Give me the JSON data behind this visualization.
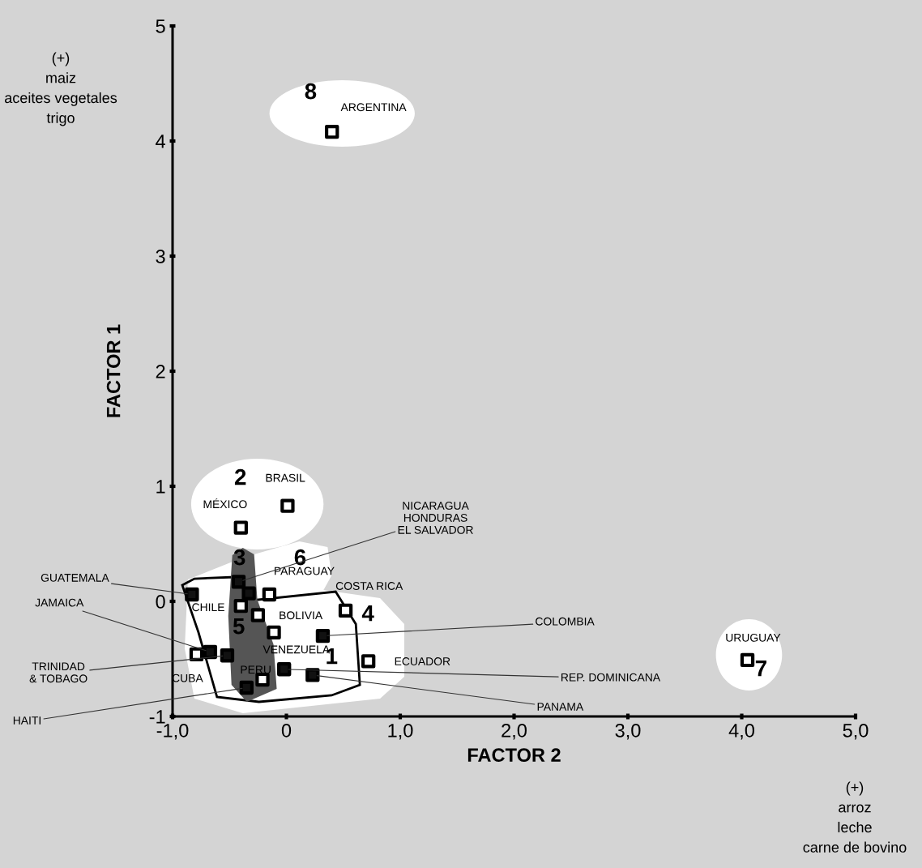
{
  "chart_data": {
    "type": "scatter",
    "xlabel": "FACTOR 2",
    "ylabel": "FACTOR 1",
    "xlim": [
      -1,
      5
    ],
    "ylim": [
      -1,
      5
    ],
    "xticks": [
      {
        "value": -1,
        "label": "-1,0"
      },
      0,
      {
        "value": 1,
        "label": "1,0"
      },
      {
        "value": 2,
        "label": "2,0"
      },
      {
        "value": 3,
        "label": "3,0"
      },
      {
        "value": 4,
        "label": "4,0"
      },
      {
        "value": 5,
        "label": "5,0"
      }
    ],
    "yticks": [
      -1,
      0,
      1,
      2,
      3,
      4,
      5
    ],
    "marker": "square",
    "grid": false,
    "legend": false,
    "x": [
      0.4,
      0.01,
      -0.4,
      4.05,
      0.52,
      0.72,
      -0.15,
      -0.25,
      -0.83,
      -0.4,
      -0.67,
      -0.52,
      -0.79,
      -0.35,
      -0.11,
      -0.21,
      0.32,
      -0.02,
      0.23,
      -0.42,
      -0.33
    ],
    "values": [
      4.08,
      0.83,
      0.64,
      -0.51,
      -0.08,
      -0.52,
      0.06,
      -0.12,
      0.06,
      -0.04,
      -0.44,
      -0.47,
      -0.46,
      -0.75,
      -0.27,
      -0.68,
      -0.3,
      -0.59,
      -0.64,
      0.17,
      0.07
    ],
    "colors": [
      "#ffffff",
      "#ffffff",
      "#ffffff",
      "#ffffff",
      "#ffffff",
      "#ffffff",
      "#ffffff",
      "#ffffff",
      "#111111",
      "#ffffff",
      "#111111",
      "#111111",
      "#ffffff",
      "#111111",
      "#ffffff",
      "#ffffff",
      "#111111",
      "#111111",
      "#111111",
      "#111111",
      "#111111"
    ],
    "annotations": [
      "(+)\nmaiz\naceites vegetales\ntrigo",
      "(+)\narroz\nleche\ncarne de bovino",
      "8",
      "2",
      "3",
      "6",
      "4",
      "1",
      "5",
      "7",
      {
        "text": "ARGENTINA",
        "x": 0.4,
        "y": 4.08
      },
      {
        "text": "BRASIL",
        "x": 0.01,
        "y": 0.83
      },
      {
        "text": "MÉXICO",
        "x": -0.4,
        "y": 0.64
      },
      {
        "text": "URUGUAY",
        "x": 4.05,
        "y": -0.51
      },
      {
        "text": "COSTA RICA",
        "x": 0.52,
        "y": -0.08
      },
      {
        "text": "ECUADOR",
        "x": 0.72,
        "y": -0.52
      },
      {
        "text": "PARAGUAY",
        "x": -0.15,
        "y": 0.06
      },
      {
        "text": "BOLIVIA",
        "x": -0.25,
        "y": -0.12
      },
      {
        "text": "GUATEMALA",
        "x": -0.83,
        "y": 0.06
      },
      {
        "text": "CHILE",
        "x": -0.4,
        "y": -0.04
      },
      {
        "text": "JAMAICA",
        "x": -0.67,
        "y": -0.44
      },
      {
        "text": "TRINIDAD\n& TOBAGO",
        "x": -0.52,
        "y": -0.47
      },
      {
        "text": "CUBA",
        "x": -0.79,
        "y": -0.46
      },
      {
        "text": "HAITI",
        "x": -0.35,
        "y": -0.75
      },
      {
        "text": "VENEZUELA",
        "x": -0.11,
        "y": -0.27
      },
      {
        "text": "PERU",
        "x": -0.21,
        "y": -0.68
      },
      {
        "text": "COLOMBIA",
        "x": 0.32,
        "y": -0.3
      },
      {
        "text": "REP. DOMINICANA",
        "x": -0.02,
        "y": -0.59
      },
      {
        "text": "PANAMA",
        "x": 0.23,
        "y": -0.64
      },
      {
        "text": "NICARAGUA\nHONDURAS\nEL SALVADOR",
        "x": -0.42,
        "y": 0.17
      }
    ]
  }
}
